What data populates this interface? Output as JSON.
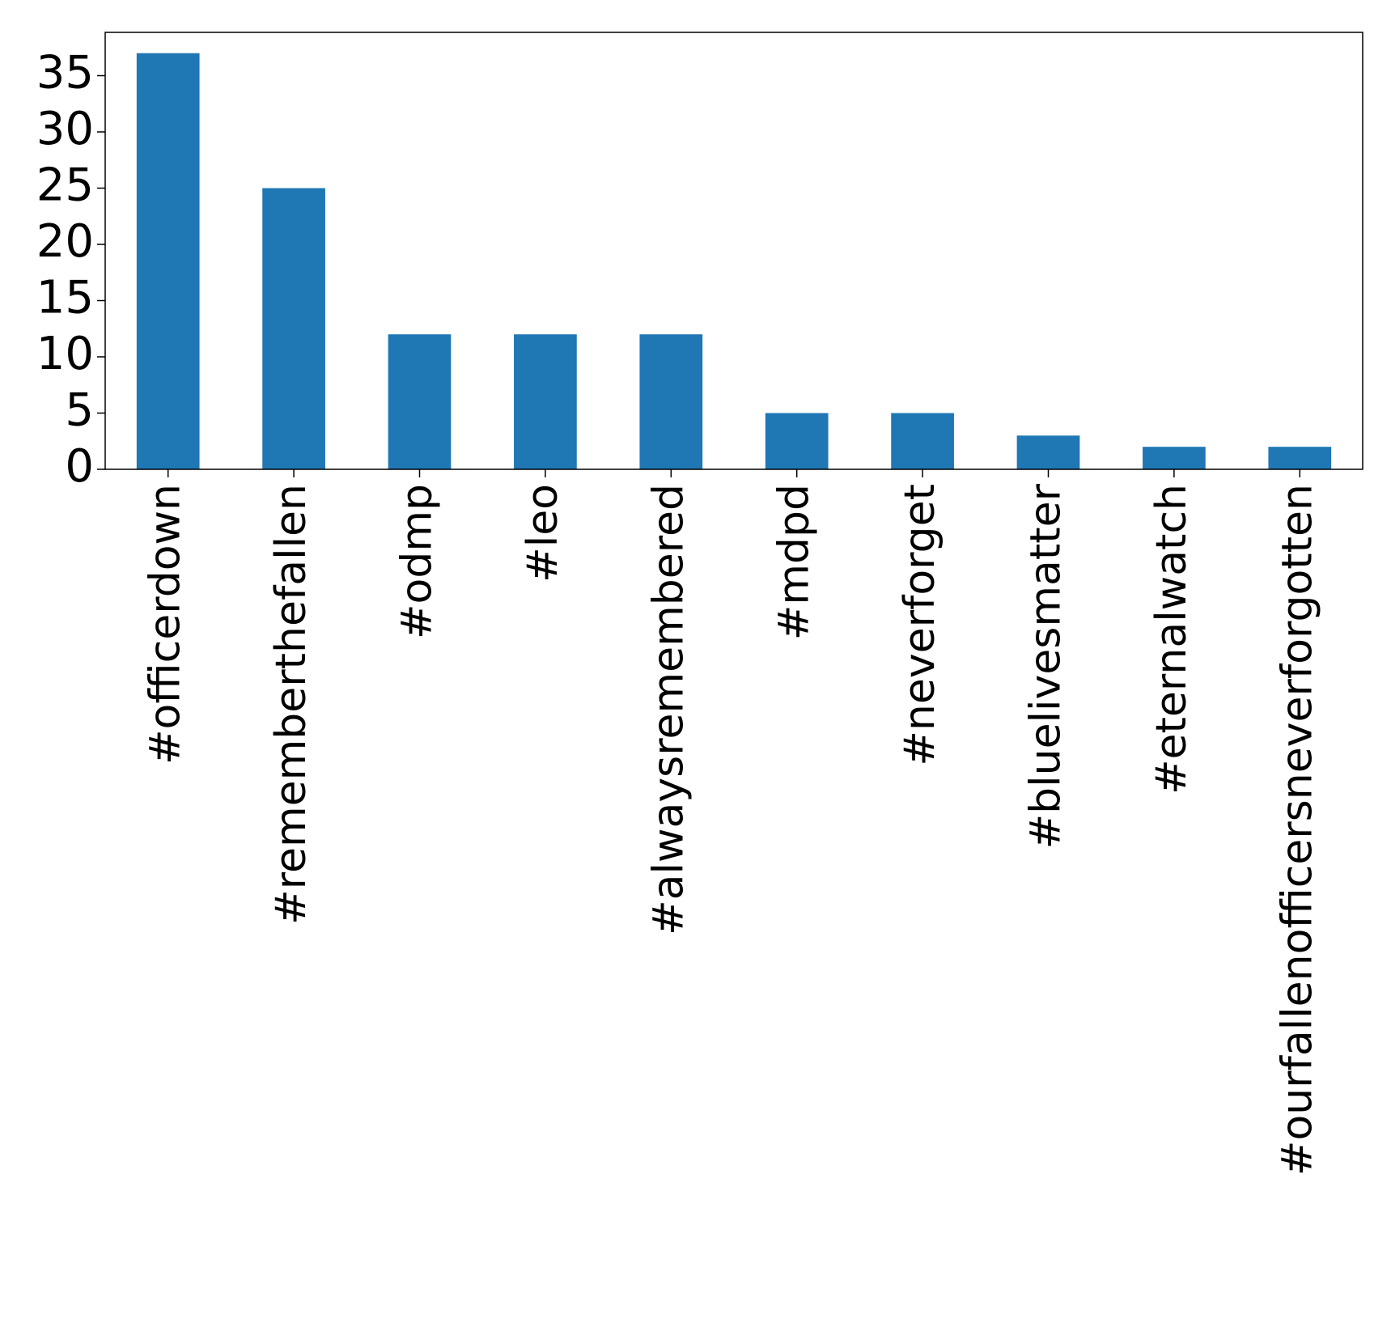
{
  "chart_data": {
    "type": "bar",
    "title": "",
    "xlabel": "",
    "ylabel": "",
    "categories": [
      "#officerdown",
      "#rememberthefallen",
      "#odmp",
      "#leo",
      "#alwaysremembered",
      "#mdpd",
      "#neverforget",
      "#bluelivesmatter",
      "#eternalwatch",
      "#ourfallenofficersneverforgotten"
    ],
    "values": [
      37,
      25,
      12,
      12,
      12,
      5,
      5,
      3,
      2,
      2
    ],
    "ylim": [
      0,
      38.85
    ],
    "yticks": [
      0,
      5,
      10,
      15,
      20,
      25,
      30,
      35
    ],
    "grid": false,
    "legend": "none",
    "bar_color": "#1f77b4"
  }
}
